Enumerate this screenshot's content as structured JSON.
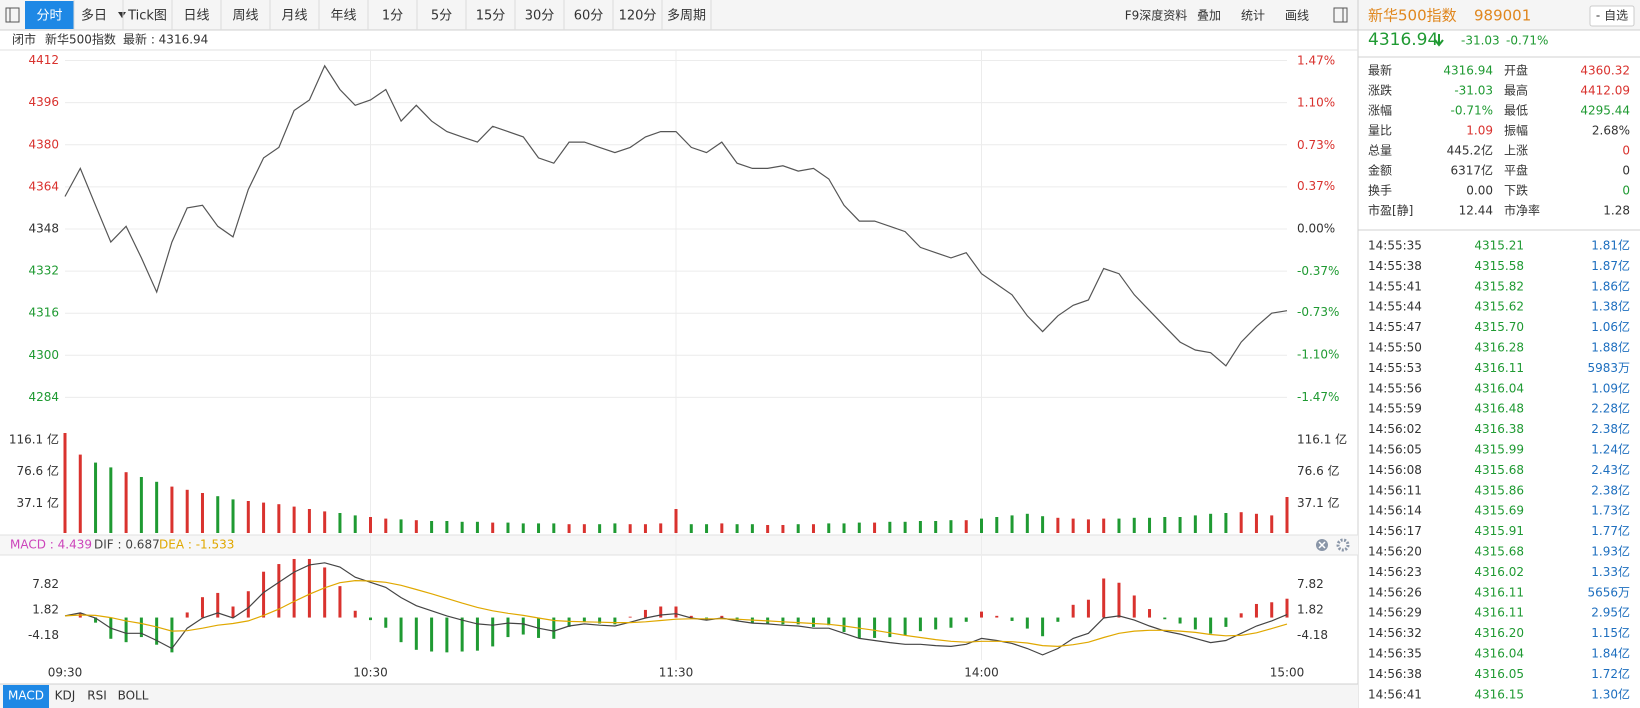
{
  "toolbar": {
    "tabs": [
      "分时",
      "多日",
      "Tick图",
      "日线",
      "周线",
      "月线",
      "年线",
      "1分",
      "5分",
      "15分",
      "30分",
      "60分",
      "120分",
      "多周期"
    ],
    "tools": [
      "F9深度资料",
      "叠加",
      "统计",
      "画线"
    ]
  },
  "info_bar": {
    "status": "闭市",
    "name": "新华500指数",
    "latest": "最新 : 4316.94"
  },
  "chart_data": [
    {
      "type": "line",
      "color": "#555555",
      "up_color": "#d9322e",
      "down_color": "#1f9a32",
      "flat_color": "#333333",
      "grid": true,
      "x": [
        "09:30",
        "09:33",
        "09:36",
        "09:39",
        "09:42",
        "09:45",
        "09:48",
        "09:51",
        "09:54",
        "09:57",
        "10:00",
        "10:03",
        "10:06",
        "10:09",
        "10:12",
        "10:15",
        "10:18",
        "10:21",
        "10:24",
        "10:27",
        "10:30",
        "10:33",
        "10:36",
        "10:39",
        "10:42",
        "10:45",
        "10:48",
        "10:51",
        "10:54",
        "10:57",
        "11:00",
        "11:03",
        "11:06",
        "11:09",
        "11:12",
        "11:15",
        "11:18",
        "11:21",
        "11:24",
        "11:27",
        "11:30",
        "13:03",
        "13:06",
        "13:09",
        "13:12",
        "13:15",
        "13:18",
        "13:21",
        "13:24",
        "13:27",
        "13:30",
        "13:33",
        "13:36",
        "13:39",
        "13:42",
        "13:45",
        "13:48",
        "13:51",
        "13:54",
        "13:57",
        "14:00",
        "14:03",
        "14:06",
        "14:09",
        "14:12",
        "14:15",
        "14:18",
        "14:21",
        "14:24",
        "14:27",
        "14:30",
        "14:33",
        "14:36",
        "14:39",
        "14:42",
        "14:45",
        "14:48",
        "14:51",
        "14:54",
        "14:57",
        "15:00"
      ],
      "values": [
        4360.32,
        4371,
        4357,
        4343,
        4349,
        4337,
        4324,
        4343,
        4356,
        4357,
        4349,
        4345,
        4363,
        4375,
        4379,
        4393,
        4397,
        4410,
        4401,
        4395,
        4397,
        4401,
        4389,
        4395,
        4389,
        4385,
        4383,
        4381,
        4387,
        4385,
        4383,
        4375,
        4373,
        4381,
        4381,
        4379,
        4377,
        4379,
        4383,
        4385,
        4385,
        4379,
        4377,
        4381,
        4373,
        4371,
        4371,
        4372,
        4370,
        4371,
        4367,
        4357,
        4351,
        4351,
        4349,
        4347,
        4341,
        4339,
        4337,
        4339,
        4331,
        4327,
        4323,
        4315,
        4309,
        4315,
        4319,
        4321,
        4333,
        4331,
        4323,
        4317,
        4311,
        4305,
        4302,
        4301,
        4296,
        4305,
        4311,
        4316,
        4316.94
      ],
      "xticks": [
        "09:30",
        "10:30",
        "11:30",
        "14:00",
        "15:00"
      ],
      "ylim": [
        4272,
        4416
      ],
      "yticks": [
        4412,
        4396,
        4380,
        4364,
        4348,
        4332,
        4316,
        4300,
        4284
      ],
      "y2lim": [
        -1.747,
        1.565
      ],
      "y2ticks": [
        {
          "value": 1.47,
          "label": "1.47%"
        },
        {
          "value": 1.1,
          "label": "1.10%"
        },
        {
          "value": 0.73,
          "label": "0.73%"
        },
        {
          "value": 0.37,
          "label": "0.37%"
        },
        {
          "value": 0,
          "label": "0.00%"
        },
        {
          "value": -0.37,
          "label": "-0.37%"
        },
        {
          "value": -0.73,
          "label": "-0.73%"
        },
        {
          "value": -1.1,
          "label": "-1.10%"
        },
        {
          "value": -1.47,
          "label": "-1.47%"
        }
      ]
    },
    {
      "type": "bar",
      "values": [
        125,
        98,
        88,
        82,
        76,
        70,
        64,
        58,
        54,
        50,
        46,
        42,
        40,
        38,
        36,
        33,
        30,
        27,
        25,
        22,
        20,
        18,
        17,
        16,
        15,
        15,
        14,
        14,
        13,
        13,
        12,
        12,
        12,
        11,
        11,
        11,
        12,
        11,
        11,
        12,
        30,
        11,
        11,
        12,
        11,
        11,
        10,
        10,
        11,
        11,
        12,
        12,
        13,
        13,
        14,
        14,
        15,
        15,
        16,
        16,
        18,
        20,
        22,
        24,
        21,
        19,
        18,
        17,
        18,
        18,
        19,
        19,
        20,
        20,
        22,
        24,
        25,
        26,
        24,
        22,
        45
      ],
      "ylim": [
        0,
        130
      ],
      "yticks": [
        {
          "value": 116.1,
          "label": "116.1 亿"
        },
        {
          "value": 76.6,
          "label": "76.6 亿"
        },
        {
          "value": 37.1,
          "label": "37.1 亿"
        }
      ]
    },
    {
      "type": "macd",
      "legend": [
        "MACD : 4.439",
        "DIF : 0.687",
        "DEA : -1.533"
      ],
      "series": [
        {
          "style": "bar",
          "color": "#cc44bb",
          "up_color": "#d9322e",
          "down_color": "#1f9a32",
          "values": [
            0,
            1.0,
            -1.2,
            -5.0,
            -5.8,
            -4.6,
            -6.4,
            -8.2,
            1.2,
            4.8,
            5.8,
            2.6,
            6.2,
            10.8,
            12.6,
            13.8,
            13.8,
            11.8,
            7.4,
            1.6,
            -0.6,
            -2.4,
            -5.8,
            -7.6,
            -8.0,
            -8.2,
            -8.0,
            -7.8,
            -6.8,
            -4.6,
            -4.0,
            -4.8,
            -5.0,
            -2.2,
            -1.0,
            -1.4,
            -1.6,
            0.2,
            1.8,
            2.6,
            2.6,
            0.4,
            -0.6,
            0.4,
            -0.8,
            -1.4,
            -1.4,
            -1.6,
            -1.6,
            -2.2,
            -1.8,
            -3.4,
            -4.8,
            -4.8,
            -4.6,
            -4.2,
            -3.2,
            -2.8,
            -2.4,
            -1.0,
            1.4,
            0.4,
            -0.8,
            -2.6,
            -4.4,
            -1.0,
            3.0,
            4.2,
            9.2,
            8.2,
            5.2,
            2.0,
            -0.4,
            -1.4,
            -2.8,
            -3.8,
            -2.2,
            1.0,
            3.2,
            3.6,
            4.439
          ]
        },
        {
          "style": "line",
          "color": "#444444",
          "values": [
            0.4,
            1.1,
            -0.1,
            -2.5,
            -3.7,
            -3.7,
            -5.4,
            -7.3,
            -2.5,
            -0.1,
            1.1,
            -0.1,
            2.3,
            5.9,
            8.3,
            10.7,
            12.4,
            12.9,
            11.9,
            9.5,
            8.3,
            7.1,
            4.7,
            2.8,
            1.6,
            0.4,
            -0.6,
            -1.5,
            -1.8,
            -1.3,
            -1.5,
            -2.5,
            -3.2,
            -2.0,
            -1.5,
            -1.8,
            -2.0,
            -1.1,
            -0.1,
            0.6,
            0.9,
            -0.1,
            -0.6,
            -0.1,
            -0.8,
            -1.3,
            -1.5,
            -1.8,
            -2.0,
            -2.5,
            -2.5,
            -3.7,
            -4.9,
            -5.4,
            -5.9,
            -6.3,
            -6.3,
            -6.6,
            -6.8,
            -6.3,
            -4.9,
            -5.4,
            -6.1,
            -7.3,
            -8.8,
            -7.3,
            -4.9,
            -3.7,
            -0.1,
            0.4,
            -0.6,
            -2.0,
            -3.2,
            -3.9,
            -4.9,
            -5.9,
            -5.4,
            -3.7,
            -2.0,
            -0.8,
            0.687
          ]
        },
        {
          "style": "line",
          "color": "#e0a800",
          "values": [
            0.4,
            0.6,
            0.5,
            0,
            -0.8,
            -1.4,
            -2.2,
            -3.2,
            -3.1,
            -2.5,
            -1.8,
            -1.4,
            -0.8,
            0.5,
            2,
            3.8,
            5.5,
            7,
            8.2,
            8.7,
            8.6,
            8.3,
            7.6,
            6.6,
            5.6,
            4.5,
            3.4,
            2.4,
            1.6,
            1.0,
            0.5,
            -0.1,
            -0.7,
            -0.9,
            -1.0,
            -1.1,
            -1.2,
            -1.2,
            -1.0,
            -0.7,
            -0.4,
            -0.3,
            -0.3,
            -0.3,
            -0.4,
            -0.6,
            -0.8,
            -1.0,
            -1.2,
            -1.4,
            -1.6,
            -2.0,
            -2.5,
            -3.0,
            -3.6,
            -4.2,
            -4.7,
            -5.2,
            -5.6,
            -5.8,
            -5.6,
            -5.6,
            -5.7,
            -6.0,
            -6.6,
            -6.8,
            -6.4,
            -5.8,
            -4.7,
            -3.7,
            -3.2,
            -3.0,
            -3.0,
            -3.2,
            -3.5,
            -4.0,
            -4.3,
            -4.2,
            -3.6,
            -2.6,
            -1.533
          ]
        }
      ],
      "ylim": [
        -10,
        14.5
      ],
      "yticks": [
        7.82,
        1.82,
        -4.18
      ]
    }
  ],
  "indicator_tabs": [
    "MACD",
    "KDJ",
    "RSI",
    "BOLL"
  ],
  "quote": {
    "name": "新华500指数",
    "code": "989001",
    "watch": "- 自选",
    "price": "4316.94",
    "change": "-31.03",
    "change_pct": "-0.71%"
  },
  "stats": {
    "rows": [
      [
        "最新",
        "4316.94",
        "开盘",
        "4360.32"
      ],
      [
        "涨跌",
        "-31.03",
        "最高",
        "4412.09"
      ],
      [
        "涨幅",
        "-0.71%",
        "最低",
        "4295.44"
      ],
      [
        "量比",
        "1.09",
        "振幅",
        "2.68%"
      ],
      [
        "总量",
        "445.2亿",
        "上涨",
        "0"
      ],
      [
        "金额",
        "6317亿",
        "平盘",
        "0"
      ],
      [
        "换手",
        "0.00",
        "下跌",
        "0"
      ],
      [
        "市盈[静]",
        "12.44",
        "市净率",
        "1.28"
      ]
    ],
    "colors": [
      [
        "#1f9a32",
        "#d9322e"
      ],
      [
        "#1f9a32",
        "#d9322e"
      ],
      [
        "#1f9a32",
        "#1f9a32"
      ],
      [
        "#d9322e",
        "#333333"
      ],
      [
        "#333333",
        "#d9322e"
      ],
      [
        "#333333",
        "#333333"
      ],
      [
        "#333333",
        "#1f9a32"
      ],
      [
        "#333333",
        "#333333"
      ]
    ]
  },
  "trades": {
    "time_color": "#333333",
    "price_color": "#1f9a32",
    "volume_color": "#1e6fbf",
    "rows": [
      [
        "14:55:35",
        "4315.21",
        "1.81亿"
      ],
      [
        "14:55:38",
        "4315.58",
        "1.87亿"
      ],
      [
        "14:55:41",
        "4315.82",
        "1.86亿"
      ],
      [
        "14:55:44",
        "4315.62",
        "1.38亿"
      ],
      [
        "14:55:47",
        "4315.70",
        "1.06亿"
      ],
      [
        "14:55:50",
        "4316.28",
        "1.88亿"
      ],
      [
        "14:55:53",
        "4316.11",
        "5983万"
      ],
      [
        "14:55:56",
        "4316.04",
        "1.09亿"
      ],
      [
        "14:55:59",
        "4316.48",
        "2.28亿"
      ],
      [
        "14:56:02",
        "4316.38",
        "2.38亿"
      ],
      [
        "14:56:05",
        "4315.99",
        "1.24亿"
      ],
      [
        "14:56:08",
        "4315.68",
        "2.43亿"
      ],
      [
        "14:56:11",
        "4315.86",
        "2.38亿"
      ],
      [
        "14:56:14",
        "4315.69",
        "1.73亿"
      ],
      [
        "14:56:17",
        "4315.91",
        "1.77亿"
      ],
      [
        "14:56:20",
        "4315.68",
        "1.93亿"
      ],
      [
        "14:56:23",
        "4316.02",
        "1.33亿"
      ],
      [
        "14:56:26",
        "4316.11",
        "5656万"
      ],
      [
        "14:56:29",
        "4316.11",
        "2.95亿"
      ],
      [
        "14:56:32",
        "4316.20",
        "1.15亿"
      ],
      [
        "14:56:35",
        "4316.04",
        "1.84亿"
      ],
      [
        "14:56:38",
        "4316.05",
        "1.72亿"
      ],
      [
        "14:56:41",
        "4316.15",
        "1.30亿"
      ]
    ]
  }
}
